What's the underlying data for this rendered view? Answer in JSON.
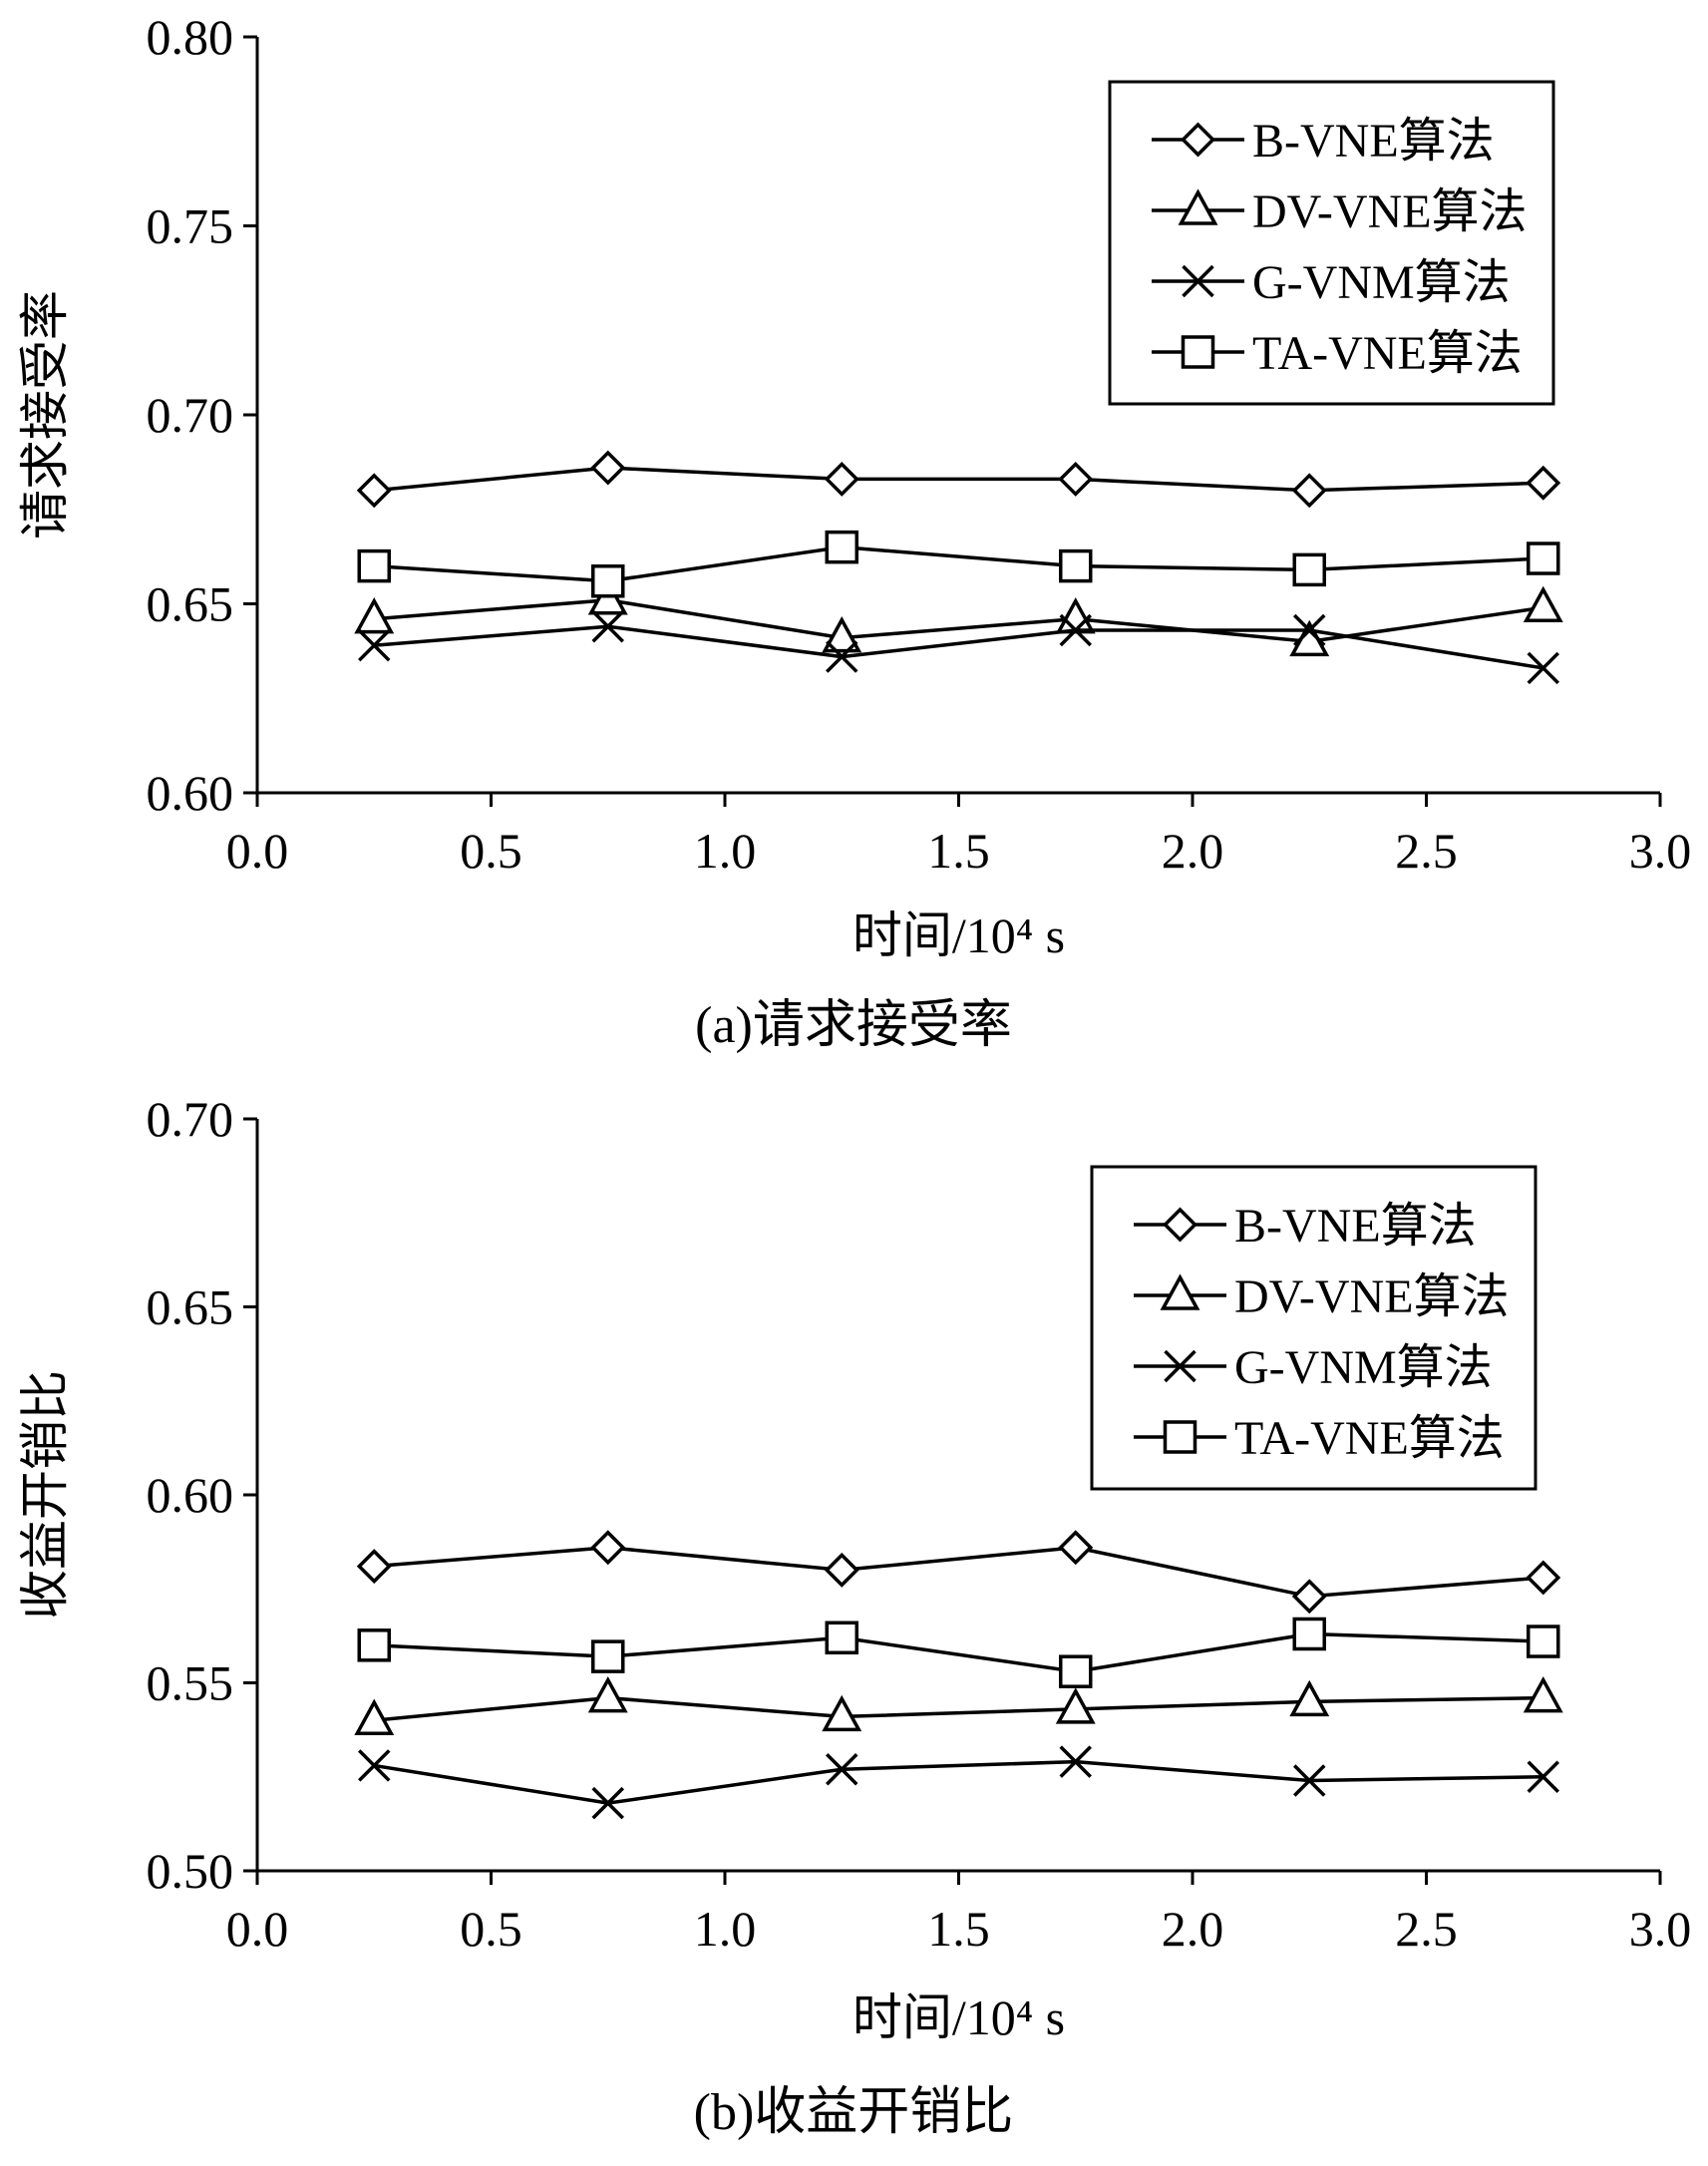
{
  "chart_data": [
    {
      "type": "line",
      "caption": "(a)请求接受率",
      "xlabel": "时间/10⁴ s",
      "ylabel": "请求接受率",
      "xlim": [
        0.0,
        3.0
      ],
      "ylim": [
        0.6,
        0.8
      ],
      "xticks": [
        "0.0",
        "0.5",
        "1.0",
        "1.5",
        "2.0",
        "2.5",
        "3.0"
      ],
      "yticks": [
        "0.60",
        "0.65",
        "0.70",
        "0.75",
        "0.80"
      ],
      "x": [
        0.25,
        0.75,
        1.25,
        1.75,
        2.25,
        2.75
      ],
      "legend_position": "top-right",
      "series": [
        {
          "name": "B-VNE算法",
          "marker": "diamond",
          "values": [
            0.68,
            0.686,
            0.683,
            0.683,
            0.68,
            0.682
          ]
        },
        {
          "name": "DV-VNE算法",
          "marker": "triangle",
          "values": [
            0.646,
            0.651,
            0.641,
            0.646,
            0.64,
            0.649
          ]
        },
        {
          "name": "G-VNM算法",
          "marker": "x",
          "values": [
            0.639,
            0.644,
            0.636,
            0.643,
            0.643,
            0.633
          ]
        },
        {
          "name": "TA-VNE算法",
          "marker": "square",
          "values": [
            0.66,
            0.656,
            0.665,
            0.66,
            0.659,
            0.662
          ]
        }
      ]
    },
    {
      "type": "line",
      "caption": "(b)收益开销比",
      "xlabel": "时间/10⁴ s",
      "ylabel": "收益开销比",
      "xlim": [
        0.0,
        3.0
      ],
      "ylim": [
        0.5,
        0.7
      ],
      "xticks": [
        "0.0",
        "0.5",
        "1.0",
        "1.5",
        "2.0",
        "2.5",
        "3.0"
      ],
      "yticks": [
        "0.50",
        "0.55",
        "0.60",
        "0.65",
        "0.70"
      ],
      "x": [
        0.25,
        0.75,
        1.25,
        1.75,
        2.25,
        2.75
      ],
      "legend_position": "top-right",
      "series": [
        {
          "name": "B-VNE算法",
          "marker": "diamond",
          "values": [
            0.581,
            0.586,
            0.58,
            0.586,
            0.573,
            0.578
          ]
        },
        {
          "name": "DV-VNE算法",
          "marker": "triangle",
          "values": [
            0.54,
            0.546,
            0.541,
            0.543,
            0.545,
            0.546
          ]
        },
        {
          "name": "G-VNM算法",
          "marker": "x",
          "values": [
            0.528,
            0.518,
            0.527,
            0.529,
            0.524,
            0.525
          ]
        },
        {
          "name": "TA-VNE算法",
          "marker": "square",
          "values": [
            0.56,
            0.557,
            0.562,
            0.553,
            0.563,
            0.561
          ]
        }
      ]
    }
  ]
}
